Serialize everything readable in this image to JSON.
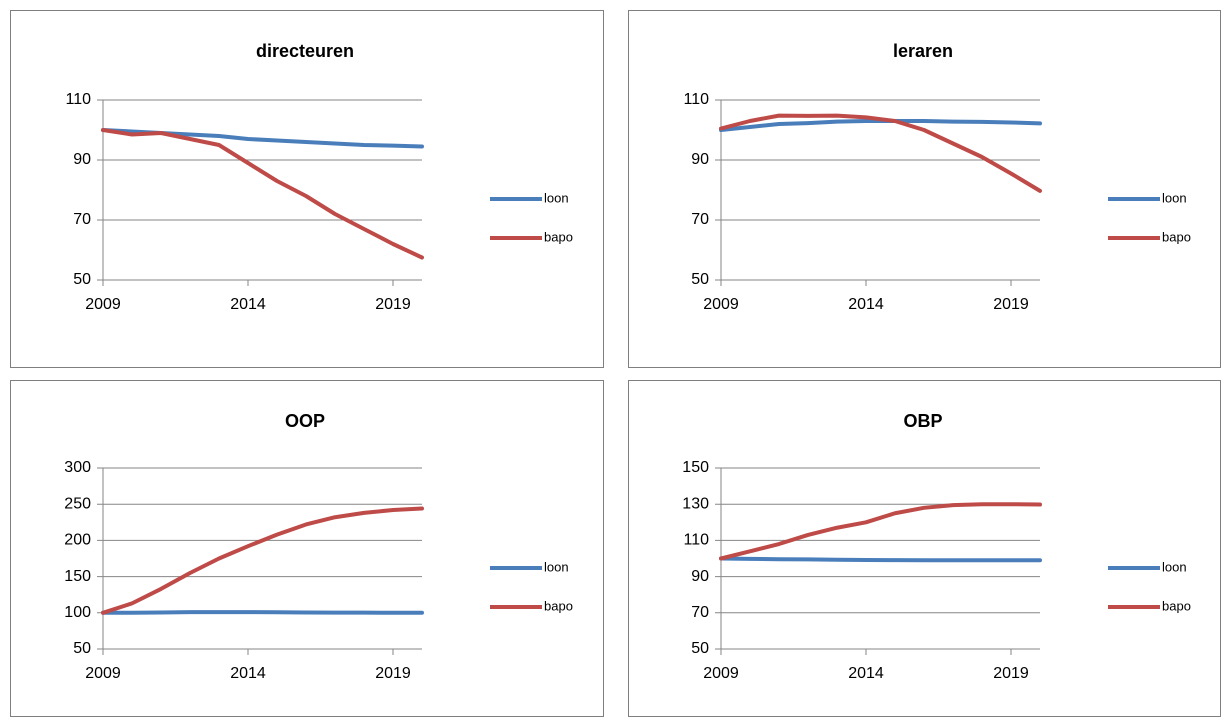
{
  "chart_data": [
    {
      "type": "line",
      "title": "directeuren",
      "x": [
        2009,
        2010,
        2011,
        2012,
        2013,
        2014,
        2015,
        2016,
        2017,
        2018,
        2019,
        2020
      ],
      "series": [
        {
          "name": "loon",
          "color": "#4a7ebb",
          "values": [
            100,
            99.5,
            99,
            98.5,
            98,
            97,
            96.5,
            96,
            95.5,
            95,
            94.8,
            94.5
          ]
        },
        {
          "name": "bapo",
          "color": "#be4b48",
          "values": [
            100,
            98.5,
            99,
            97,
            95,
            89,
            83,
            78,
            72,
            67,
            62,
            57.5
          ]
        }
      ],
      "xlim": [
        2009,
        2020
      ],
      "xticks": [
        2009,
        2014,
        2019
      ],
      "ylim": [
        50,
        110
      ],
      "yticks": [
        50,
        70,
        90,
        110
      ],
      "grid": true,
      "legend": "right"
    },
    {
      "type": "line",
      "title": "leraren",
      "x": [
        2009,
        2010,
        2011,
        2012,
        2013,
        2014,
        2015,
        2016,
        2017,
        2018,
        2019,
        2020
      ],
      "series": [
        {
          "name": "loon",
          "color": "#4a7ebb",
          "values": [
            100,
            101,
            102,
            102.3,
            102.8,
            103,
            103,
            103,
            102.8,
            102.7,
            102.5,
            102.2
          ]
        },
        {
          "name": "bapo",
          "color": "#be4b48",
          "values": [
            100.5,
            103,
            104.8,
            104.7,
            104.8,
            104.2,
            103,
            100,
            95.5,
            91,
            85.5,
            79.7
          ]
        }
      ],
      "xlim": [
        2009,
        2020
      ],
      "xticks": [
        2009,
        2014,
        2019
      ],
      "ylim": [
        50,
        110
      ],
      "yticks": [
        50,
        70,
        90,
        110
      ],
      "grid": true,
      "legend": "right"
    },
    {
      "type": "line",
      "title": "OOP",
      "x": [
        2009,
        2010,
        2011,
        2012,
        2013,
        2014,
        2015,
        2016,
        2017,
        2018,
        2019,
        2020
      ],
      "series": [
        {
          "name": "loon",
          "color": "#4a7ebb",
          "values": [
            100,
            100,
            100.5,
            101,
            101,
            101,
            100.8,
            100.5,
            100.3,
            100.2,
            100,
            100
          ]
        },
        {
          "name": "bapo",
          "color": "#be4b48",
          "values": [
            100,
            113,
            133,
            155,
            175,
            192,
            208,
            222,
            232,
            238,
            242,
            244
          ]
        }
      ],
      "xlim": [
        2009,
        2020
      ],
      "xticks": [
        2009,
        2014,
        2019
      ],
      "ylim": [
        50,
        300
      ],
      "yticks": [
        50,
        100,
        150,
        200,
        250,
        300
      ],
      "grid": true,
      "legend": "right"
    },
    {
      "type": "line",
      "title": "OBP",
      "x": [
        2009,
        2010,
        2011,
        2012,
        2013,
        2014,
        2015,
        2016,
        2017,
        2018,
        2019,
        2020
      ],
      "series": [
        {
          "name": "loon",
          "color": "#4a7ebb",
          "values": [
            100,
            99.8,
            99.6,
            99.5,
            99.3,
            99.2,
            99.1,
            99,
            99,
            99,
            99,
            99
          ]
        },
        {
          "name": "bapo",
          "color": "#be4b48",
          "values": [
            100,
            104,
            108,
            113,
            117,
            120,
            125,
            128,
            129.5,
            130,
            130,
            129.8
          ]
        }
      ],
      "xlim": [
        2009,
        2020
      ],
      "xticks": [
        2009,
        2014,
        2019
      ],
      "ylim": [
        50,
        150
      ],
      "yticks": [
        50,
        70,
        90,
        110,
        130,
        150
      ],
      "grid": true,
      "legend": "right"
    }
  ]
}
